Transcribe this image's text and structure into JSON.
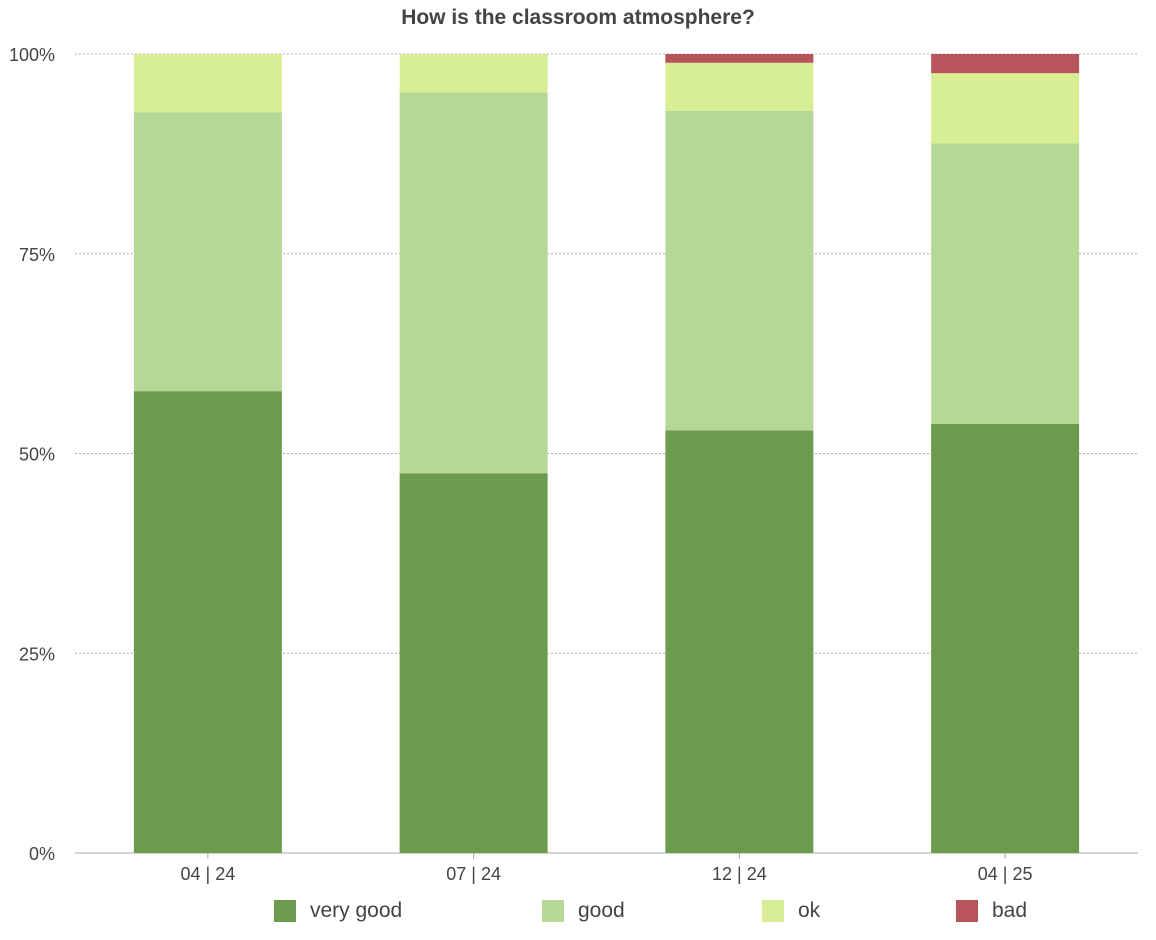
{
  "chart_data": {
    "type": "bar",
    "stacked": true,
    "normalized": true,
    "title": "How is the classroom atmosphere?",
    "xlabel": "",
    "ylabel": "",
    "ylim": [
      0,
      100
    ],
    "yticks": [
      "0%",
      "25%",
      "50%",
      "75%",
      "100%"
    ],
    "ytick_values": [
      0,
      25,
      50,
      75,
      100
    ],
    "grid": true,
    "legend_position": "bottom",
    "categories": [
      "04 | 24",
      "07 | 24",
      "12 | 24",
      "04 | 25"
    ],
    "series": [
      {
        "name": "very good",
        "color": "#6d9b4e",
        "values": [
          57.8,
          47.5,
          52.9,
          53.7
        ]
      },
      {
        "name": "good",
        "color": "#b5d896",
        "values": [
          34.9,
          47.7,
          40.0,
          35.1
        ]
      },
      {
        "name": "ok",
        "color": "#d7ee94",
        "values": [
          7.3,
          4.8,
          6.0,
          8.8
        ]
      },
      {
        "name": "bad",
        "color": "#b8545c",
        "values": [
          0,
          0,
          1.1,
          2.4
        ]
      }
    ]
  }
}
